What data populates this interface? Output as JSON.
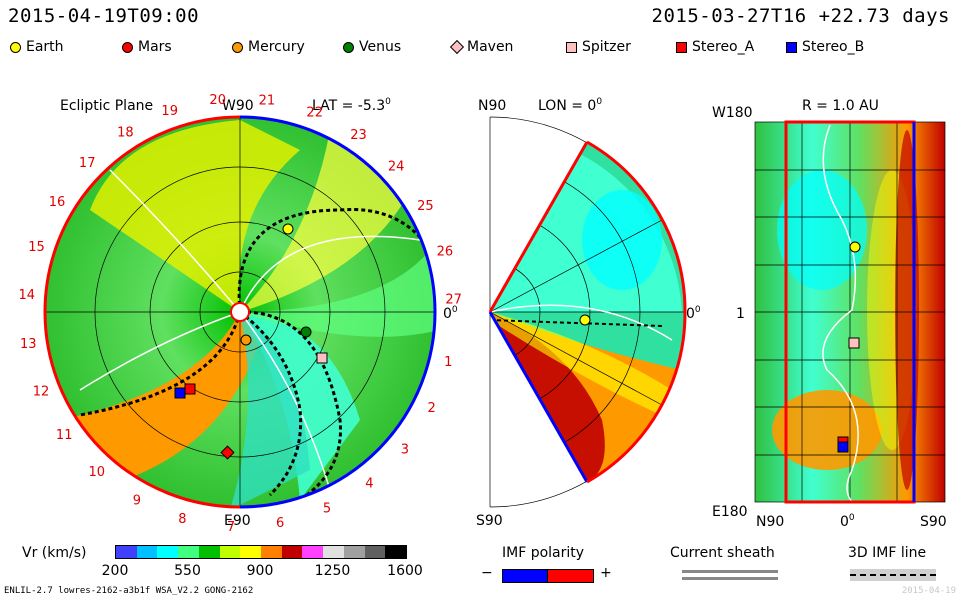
{
  "header": {
    "left_time": "2015-04-19T09:00",
    "right_time": "2015-03-27T16  +22.73 days"
  },
  "legend": [
    {
      "label": "Earth",
      "shape": "circle",
      "color": "#ffff00"
    },
    {
      "label": "Mars",
      "shape": "circle",
      "color": "#ff0000"
    },
    {
      "label": "Mercury",
      "shape": "circle",
      "color": "#ff9900"
    },
    {
      "label": "Venus",
      "shape": "circle",
      "color": "#008000"
    },
    {
      "label": "Maven",
      "shape": "diamond",
      "color": "#ffc0c0"
    },
    {
      "label": "Spitzer",
      "shape": "square",
      "color": "#ffc0c0"
    },
    {
      "label": "Stereo_A",
      "shape": "square",
      "color": "#ff0000"
    },
    {
      "label": "Stereo_B",
      "shape": "square",
      "color": "#0000ff"
    }
  ],
  "panels": {
    "ecliptic": {
      "title": "Ecliptic Plane",
      "lat": "LAT = -5.3",
      "lat_deg": "0",
      "top": "W90",
      "bottom": "E90",
      "right": "0",
      "right_deg": "0",
      "rim_numbers": [
        "1",
        "2",
        "3",
        "4",
        "5",
        "6",
        "7",
        "8",
        "9",
        "10",
        "11",
        "12",
        "13",
        "14",
        "15",
        "16",
        "17",
        "18",
        "19",
        "20",
        "21",
        "22",
        "23",
        "24",
        "25",
        "26",
        "27"
      ]
    },
    "meridional": {
      "lon": "LON = 0",
      "lon_deg": "0",
      "top": "N90",
      "bottom": "S90",
      "right": "0",
      "right_deg": "0"
    },
    "lonlat": {
      "title": "R = 1.0 AU",
      "top_left": "W180",
      "bottom_left": "E180",
      "mid_left": "1",
      "bottom_n": "N90",
      "bottom_mid": "0",
      "bottom_mid_deg": "0",
      "bottom_s": "S90"
    }
  },
  "colorbar": {
    "label": "Vr (km/s)",
    "ticks": [
      "200",
      "550",
      "900",
      "1250",
      "1600"
    ],
    "colors": [
      "#4040ff",
      "#00c0ff",
      "#00ffff",
      "#40ff80",
      "#00c000",
      "#c0ff00",
      "#ffff00",
      "#ff8000",
      "#c00000",
      "#ff40ff",
      "#e0e0e0",
      "#a0a0a0",
      "#606060",
      "#000000"
    ]
  },
  "bottom_legends": {
    "imf_polarity": {
      "label": "IMF polarity",
      "minus": "−",
      "plus": "+"
    },
    "current_sheath": {
      "label": "Current sheath"
    },
    "imf_line": {
      "label": "3D IMF line"
    }
  },
  "footer": {
    "left": "ENLIL-2.7 lowres-2162-a3b1f WSA_V2.2 GONG-2162",
    "right": "2015-04-19"
  }
}
